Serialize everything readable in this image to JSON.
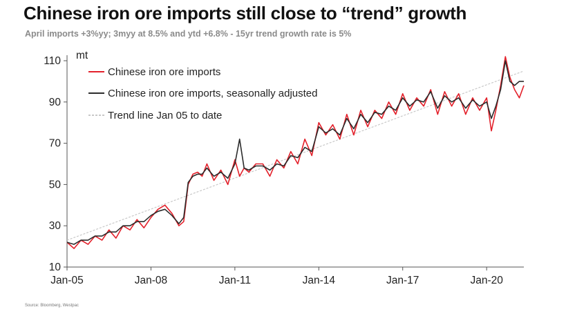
{
  "header": {
    "title": "Chinese iron ore imports still close to “trend” growth",
    "subtitle": "April imports +3%yy; 3myy at 8.5% and ytd +6.8% - 15yr trend growth rate is 5%"
  },
  "footer": {
    "source": "Source: Bloomberg, Westpac"
  },
  "colors": {
    "imports": "#e3202a",
    "sa": "#2b2b2b",
    "trend": "#c8c8c8",
    "axis": "#555555"
  },
  "chart_data": {
    "type": "line",
    "title": "Chinese iron ore imports still close to “trend” growth",
    "xlabel": "",
    "ylabel": "mt",
    "ylim": [
      10,
      110
    ],
    "yticks": [
      10,
      30,
      50,
      70,
      90,
      110
    ],
    "ytick_labels": [
      "10",
      "30",
      "50",
      "70",
      "90",
      "110"
    ],
    "x_range": [
      2005.0,
      2021.33
    ],
    "xticks": [
      2005,
      2008,
      2011,
      2014,
      2017,
      2020
    ],
    "xtick_labels": [
      "Jan-05",
      "Jan-08",
      "Jan-11",
      "Jan-14",
      "Jan-17",
      "Jan-20"
    ],
    "legend": [
      "Chinese iron ore imports",
      "Chinese iron ore imports, seasonally adjusted",
      "Trend line Jan 05 to date"
    ],
    "legend_position": "top-left",
    "series": [
      {
        "name": "Chinese iron ore imports",
        "x": [
          2005.0,
          2005.25,
          2005.5,
          2005.75,
          2006.0,
          2006.25,
          2006.5,
          2006.75,
          2007.0,
          2007.25,
          2007.5,
          2007.75,
          2008.0,
          2008.25,
          2008.5,
          2008.75,
          2009.0,
          2009.17,
          2009.33,
          2009.5,
          2009.67,
          2009.83,
          2010.0,
          2010.25,
          2010.5,
          2010.75,
          2011.0,
          2011.17,
          2011.33,
          2011.5,
          2011.75,
          2012.0,
          2012.25,
          2012.5,
          2012.75,
          2013.0,
          2013.25,
          2013.5,
          2013.75,
          2014.0,
          2014.25,
          2014.5,
          2014.75,
          2015.0,
          2015.25,
          2015.5,
          2015.75,
          2016.0,
          2016.25,
          2016.5,
          2016.75,
          2017.0,
          2017.25,
          2017.5,
          2017.75,
          2018.0,
          2018.25,
          2018.5,
          2018.75,
          2019.0,
          2019.25,
          2019.5,
          2019.75,
          2020.0,
          2020.17,
          2020.33,
          2020.5,
          2020.67,
          2020.83,
          2021.0,
          2021.17,
          2021.33
        ],
        "values": [
          22,
          19,
          23,
          21,
          25,
          23,
          28,
          24,
          30,
          28,
          33,
          29,
          34,
          38,
          40,
          36,
          30,
          32,
          50,
          55,
          56,
          54,
          60,
          52,
          57,
          50,
          62,
          54,
          58,
          56,
          60,
          60,
          54,
          62,
          58,
          66,
          60,
          72,
          64,
          80,
          74,
          79,
          72,
          84,
          74,
          86,
          78,
          86,
          82,
          90,
          84,
          94,
          86,
          92,
          88,
          96,
          84,
          95,
          88,
          94,
          84,
          92,
          86,
          92,
          76,
          86,
          98,
          112,
          102,
          96,
          92,
          98
        ]
      },
      {
        "name": "Chinese iron ore imports, seasonally adjusted",
        "x": [
          2005.0,
          2005.25,
          2005.5,
          2005.75,
          2006.0,
          2006.25,
          2006.5,
          2006.75,
          2007.0,
          2007.25,
          2007.5,
          2007.75,
          2008.0,
          2008.25,
          2008.5,
          2008.75,
          2009.0,
          2009.17,
          2009.33,
          2009.5,
          2009.67,
          2009.83,
          2010.0,
          2010.25,
          2010.5,
          2010.75,
          2011.0,
          2011.17,
          2011.33,
          2011.5,
          2011.75,
          2012.0,
          2012.25,
          2012.5,
          2012.75,
          2013.0,
          2013.25,
          2013.5,
          2013.75,
          2014.0,
          2014.25,
          2014.5,
          2014.75,
          2015.0,
          2015.25,
          2015.5,
          2015.75,
          2016.0,
          2016.25,
          2016.5,
          2016.75,
          2017.0,
          2017.25,
          2017.5,
          2017.75,
          2018.0,
          2018.25,
          2018.5,
          2018.75,
          2019.0,
          2019.25,
          2019.5,
          2019.75,
          2020.0,
          2020.17,
          2020.33,
          2020.5,
          2020.67,
          2020.83,
          2021.0,
          2021.17,
          2021.33
        ],
        "values": [
          22,
          21,
          23,
          23,
          25,
          25,
          27,
          27,
          30,
          30,
          32,
          32,
          35,
          37,
          38,
          35,
          31,
          34,
          51,
          54,
          55,
          55,
          58,
          54,
          56,
          53,
          60,
          72,
          58,
          57,
          59,
          59,
          57,
          60,
          59,
          64,
          63,
          68,
          66,
          78,
          75,
          77,
          74,
          82,
          77,
          84,
          80,
          85,
          84,
          88,
          86,
          92,
          88,
          91,
          90,
          95,
          87,
          93,
          90,
          92,
          87,
          91,
          88,
          90,
          82,
          88,
          96,
          110,
          100,
          98,
          100,
          100
        ]
      },
      {
        "name": "Trend line Jan 05 to date",
        "x": [
          2005.0,
          2021.33
        ],
        "values": [
          23,
          105
        ]
      }
    ]
  }
}
